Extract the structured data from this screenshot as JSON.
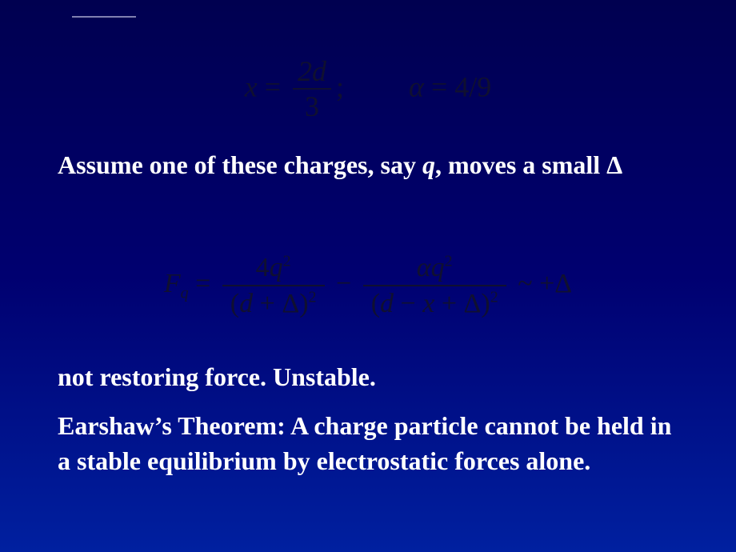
{
  "background": {
    "gradient_top": "#000050",
    "gradient_mid": "#000070",
    "gradient_bottom": "#0020a0"
  },
  "typography": {
    "body_font": "Times New Roman",
    "body_color": "#ffffff",
    "body_fontsize_pt": 24,
    "body_weight": "bold",
    "equation_color": "#101030",
    "equation_fontsize_pt": 27
  },
  "eq1": {
    "lhs_var": "x",
    "eq": " = ",
    "frac_num": "2d",
    "frac_den": "3",
    "sep": ";",
    "rhs_var": "α",
    "rhs_eq": " = ",
    "rhs_val": "4/9"
  },
  "para1": {
    "pre": "Assume one of these charges, say ",
    "q": "q",
    "mid": ", moves a small ",
    "delta": "Δ"
  },
  "eq2": {
    "F": "F",
    "Fsub": "q",
    "eq": " = ",
    "t1_num_a": "4",
    "t1_num_b": "q",
    "t1_num_sup": "2",
    "t1_den_open": "(",
    "t1_den_d": "d",
    "t1_den_plus": " + ",
    "t1_den_D": "Δ",
    "t1_den_close": ")",
    "t1_den_exp": "2",
    "minus": " − ",
    "t2_num_a": "α",
    "t2_num_b": "q",
    "t2_num_sup": "2",
    "t2_den_open": "(",
    "t2_den_d": "d",
    "t2_den_m1": " − ",
    "t2_den_x": "x",
    "t2_den_p": " + ",
    "t2_den_D": "Δ",
    "t2_den_close": ")",
    "t2_den_exp": "2",
    "tail_sim": " ~ ",
    "tail_sign": "+",
    "tail_D": "Δ"
  },
  "para2": "not restoring force. Unstable.",
  "para3": "Earshaw’s Theorem: A charge particle cannot be held in a stable equilibrium by electrostatic forces alone."
}
